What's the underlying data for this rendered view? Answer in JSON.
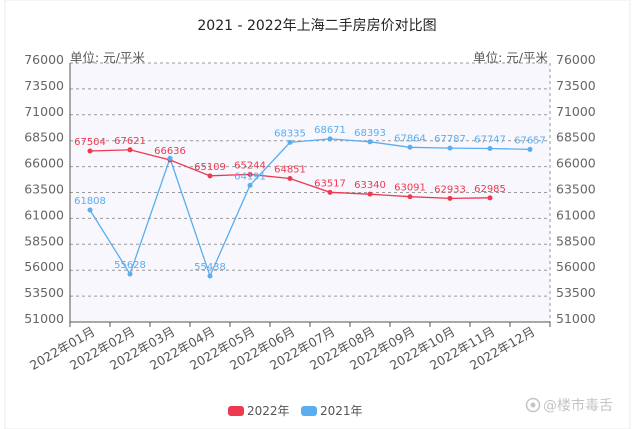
{
  "watermark": "@楼市毒舌",
  "chart_data": {
    "type": "line",
    "title": "2021 - 2022年上海二手房房价对比图",
    "ylabel": "单位: 元/平米",
    "xlabel": "",
    "ylim": [
      51000,
      76000
    ],
    "yticks": [
      76000,
      73500,
      71000,
      68500,
      66000,
      63500,
      61000,
      58500,
      56000,
      53500,
      51000
    ],
    "grid": true,
    "legend_position": "bottom-center",
    "categories": [
      "2022年01月",
      "2022年02月",
      "2022年03月",
      "2022年04月",
      "2022年05月",
      "2022年06月",
      "2022年07月",
      "2022年08月",
      "2022年09月",
      "2022年10月",
      "2022年11月",
      "2022年12月"
    ],
    "series": [
      {
        "name": "2022年",
        "color": "#ee3a4f",
        "values": [
          67504,
          67621,
          66636,
          65109,
          65244,
          64851,
          63517,
          63340,
          63091,
          62933,
          62985,
          null
        ],
        "labels": [
          "67504",
          "67621",
          "66636",
          "65109",
          "65244",
          "64851",
          "63517",
          "63340",
          "63091",
          "62933",
          "62985",
          null
        ]
      },
      {
        "name": "2021年",
        "color": "#5aaeef",
        "values": [
          61808,
          55628,
          66800,
          55438,
          64191,
          68335,
          68671,
          68393,
          67864,
          67787,
          67747,
          67657
        ],
        "labels": [
          "61808",
          "55628",
          null,
          "55438",
          "64191",
          "68335",
          "68671",
          "68393",
          "67864",
          "67787",
          "67747",
          "67657"
        ]
      }
    ]
  }
}
